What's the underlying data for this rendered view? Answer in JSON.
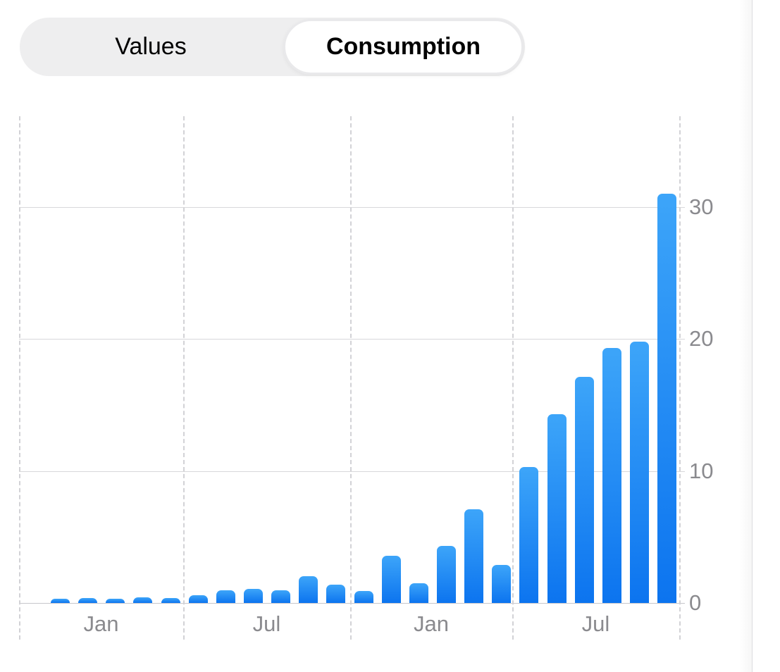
{
  "segmented_control": {
    "options": [
      {
        "label": "Values",
        "selected": false
      },
      {
        "label": "Consumption",
        "selected": true
      }
    ]
  },
  "chart_data": {
    "type": "bar",
    "values": [
      0.3,
      0.35,
      0.3,
      0.45,
      0.4,
      0.6,
      0.95,
      1.05,
      0.95,
      2.05,
      1.4,
      0.9,
      3.6,
      1.5,
      4.3,
      7.1,
      2.9,
      10.3,
      14.3,
      17.1,
      19.3,
      19.8,
      31
    ],
    "x_section_labels": [
      "Jan",
      "Jul",
      "Jan",
      "Jul"
    ],
    "yticks": [
      0,
      10,
      20,
      30
    ],
    "ytick_labels": [
      "0",
      "10",
      "20",
      "30"
    ],
    "ylim": [
      0,
      36.9
    ],
    "grid": {
      "horizontal": "solid",
      "vertical": "dashed-section-boundaries"
    },
    "legend": "none"
  },
  "colors": {
    "bar_gradient_top": "#3da5f9",
    "bar_gradient_bottom": "#0c74ef",
    "axis_label": "#8a8a8e",
    "gridline": "#d8d8db",
    "baseline": "#c7c7cb",
    "dashed_line": "#d2d2d6",
    "segment_bg": "#eeeeef",
    "segment_selected_bg": "#ffffff",
    "segment_border": "#e9e9eb",
    "segment_text": "#000000",
    "divider": "#dcdcdf"
  }
}
